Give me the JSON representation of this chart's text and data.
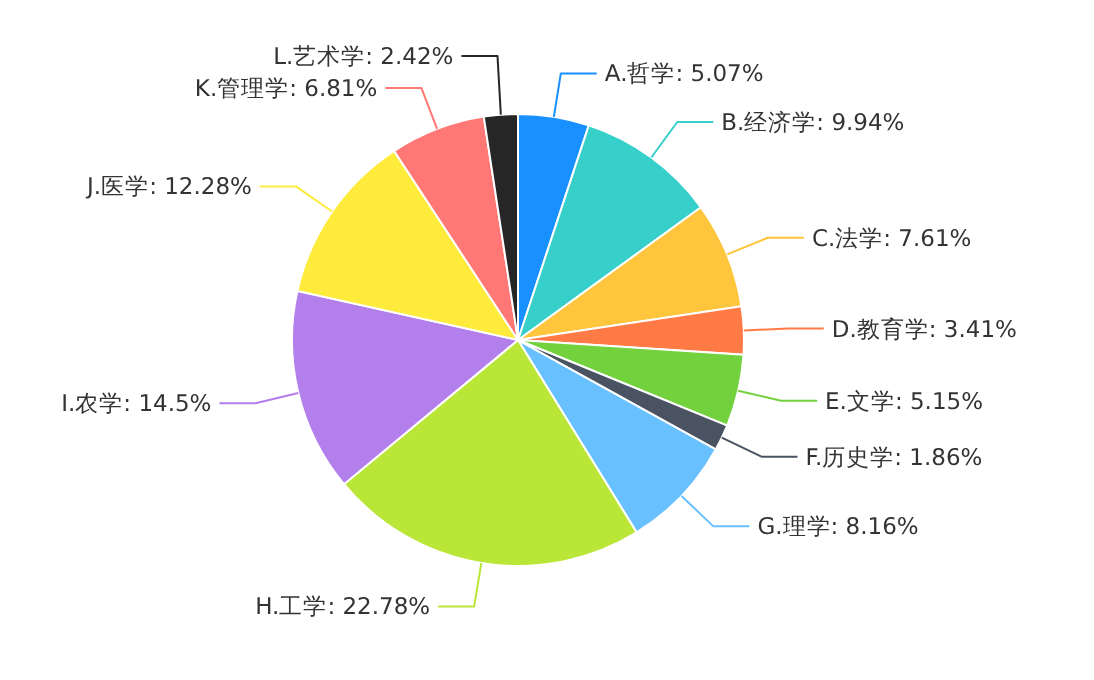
{
  "chart_data": {
    "type": "pie",
    "categories": [
      "A.哲学",
      "B.经济学",
      "C.法学",
      "D.教育学",
      "E.文学",
      "F.历史学",
      "G.理学",
      "H.工学",
      "I.农学",
      "J.医学",
      "K.管理学",
      "L.艺术学"
    ],
    "values": [
      5.07,
      9.94,
      7.61,
      3.41,
      5.15,
      1.86,
      8.16,
      22.78,
      14.5,
      12.28,
      6.81,
      2.42
    ],
    "value_labels": [
      "5.07%",
      "9.94%",
      "7.61%",
      "3.41%",
      "5.15%",
      "1.86%",
      "8.16%",
      "22.78%",
      "14.5%",
      "12.28%",
      "6.81%",
      "2.42%"
    ],
    "colors": [
      "#1890ff",
      "#36cfca",
      "#ffc53d",
      "#ff7a45",
      "#73d13d",
      "#4a5361",
      "#69c0ff",
      "#bae637",
      "#b37feb",
      "#ffeb3b",
      "#ff7875",
      "#262626"
    ]
  }
}
